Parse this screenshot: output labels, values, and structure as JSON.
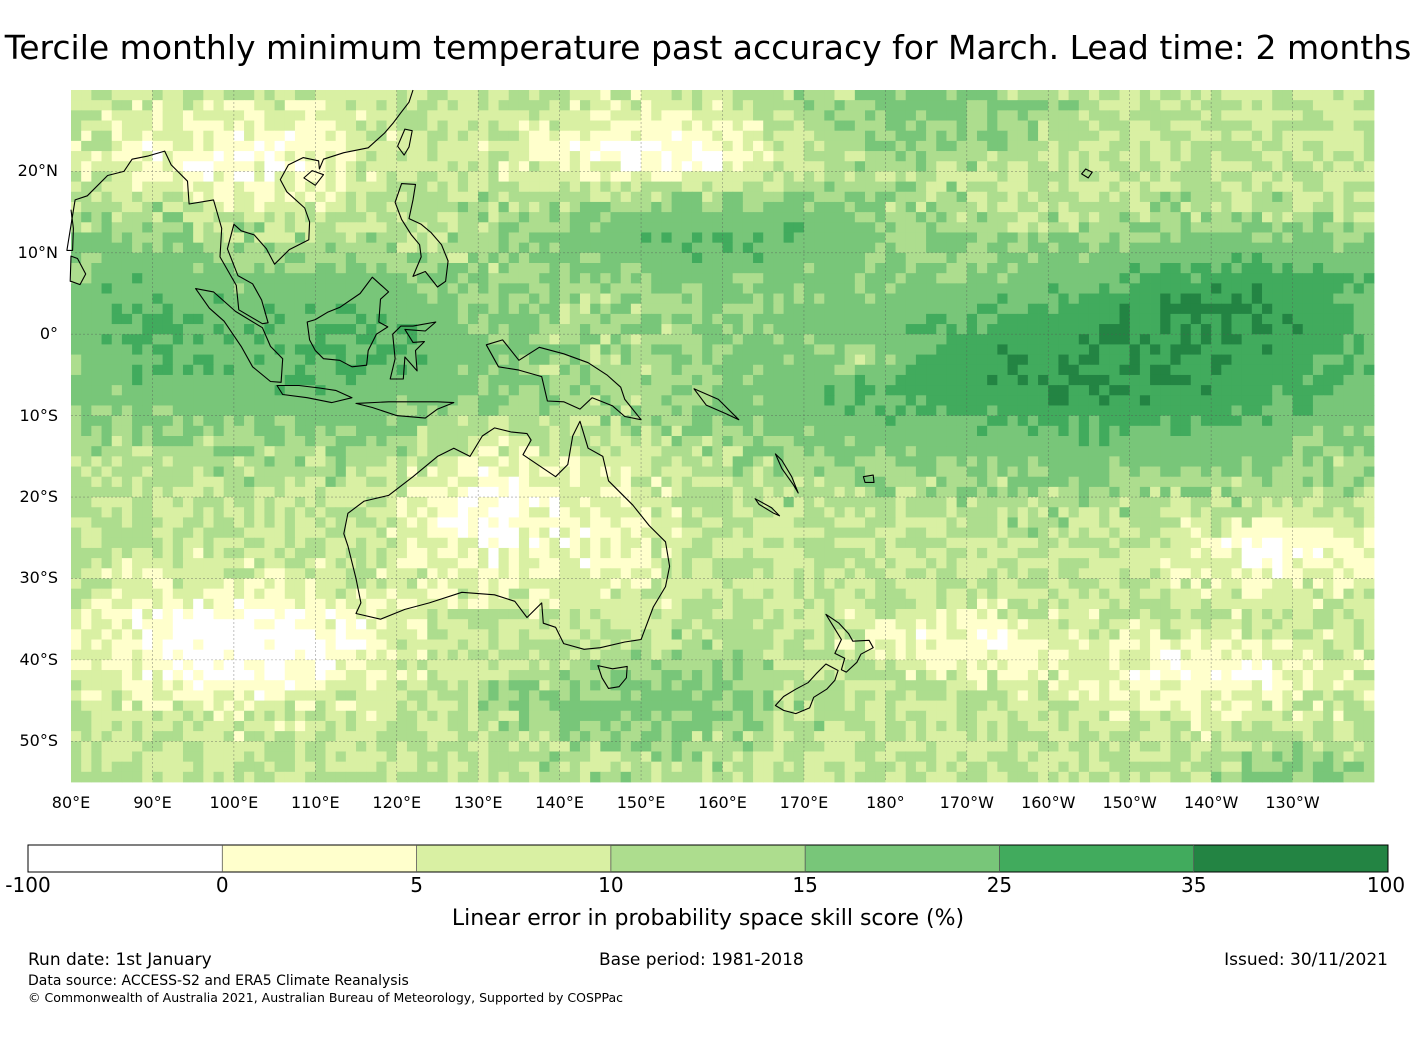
{
  "title": "Tercile monthly minimum temperature past accuracy for March. Lead time: 2 months",
  "map": {
    "region": "Western Pacific, Maritime Continent, Australia and New Zealand",
    "lon_range_deg_east": [
      80,
      240
    ],
    "lat_range_deg": [
      -55,
      30
    ],
    "lat_labels": [
      "20°N",
      "10°N",
      "0°",
      "10°S",
      "20°S",
      "30°S",
      "40°S",
      "50°S"
    ],
    "lon_labels": [
      "80°E",
      "90°E",
      "100°E",
      "110°E",
      "120°E",
      "130°E",
      "140°E",
      "150°E",
      "160°E",
      "170°E",
      "180°",
      "170°W",
      "160°W",
      "150°W",
      "140°W",
      "130°W"
    ],
    "gridlines": "dashed",
    "coastline_color": "#000000"
  },
  "colorbar": {
    "ticks": [
      "-100",
      "0",
      "5",
      "10",
      "15",
      "25",
      "35",
      "100"
    ],
    "colors": [
      "#ffffff",
      "#ffffcc",
      "#d9f0a3",
      "#addd8e",
      "#78c679",
      "#41ab5d",
      "#238443"
    ],
    "label": "Linear error in probability space skill score (%)"
  },
  "footer": {
    "run_date": "Run date: 1st January",
    "base_period": "Base period: 1981-2018",
    "issued": "Issued: 30/11/2021",
    "data_source": "Data source: ACCESS-S2 and ERA5 Climate Reanalysis",
    "copyright": "© Commonwealth of Australia 2021, Australian Bureau of Meteorology, Supported by COSPPac"
  }
}
